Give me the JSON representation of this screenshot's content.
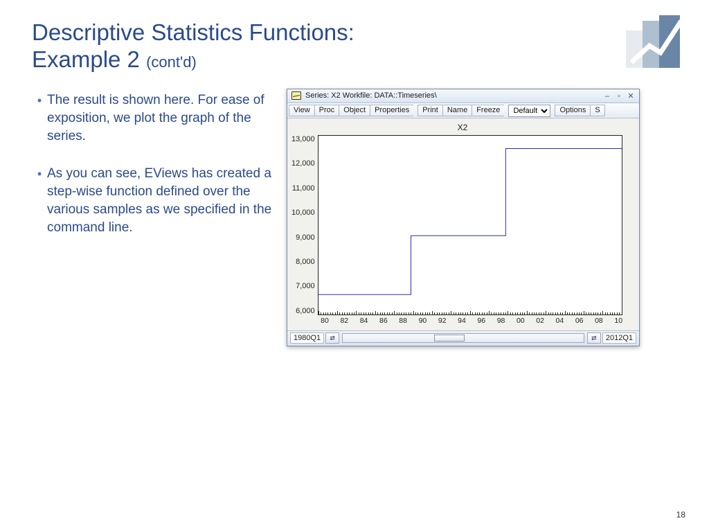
{
  "title": {
    "line1": "Descriptive Statistics Functions:",
    "line2_main": "Example 2",
    "line2_suffix": "(cont'd)"
  },
  "bullets": [
    "The result is shown here. For ease of exposition, we plot the graph of the series.",
    "As you can see, EViews has created a step-wise function defined over the various samples as we specified in the command line."
  ],
  "page_number": "18",
  "eviews": {
    "window_title": "Series: X2   Workfile: DATA::Timeseries\\",
    "toolbar_groups": [
      [
        "View",
        "Proc",
        "Object",
        "Properties"
      ],
      [
        "Print",
        "Name",
        "Freeze"
      ]
    ],
    "dropdown_value": "Default",
    "toolbar_right": [
      "Options",
      "S"
    ],
    "chart": {
      "type": "line",
      "title": "X2",
      "line_color": "#2a2ab5",
      "line_width": 1,
      "background_color": "#ffffff",
      "border_color": "#222222",
      "ylim": [
        6000,
        13000
      ],
      "ytick_step": 1000,
      "yticks": [
        "13,000",
        "12,000",
        "11,000",
        "10,000",
        "9,000",
        "8,000",
        "7,000",
        "6,000"
      ],
      "x_range": [
        1980,
        2012
      ],
      "xticks_major": [
        "80",
        "82",
        "84",
        "86",
        "88",
        "90",
        "92",
        "94",
        "96",
        "98",
        "00",
        "02",
        "04",
        "06",
        "08",
        "10"
      ],
      "series_points": [
        {
          "x": 1980.0,
          "y": 6800
        },
        {
          "x": 1989.75,
          "y": 6800
        },
        {
          "x": 1989.75,
          "y": 9100
        },
        {
          "x": 1999.75,
          "y": 9100
        },
        {
          "x": 1999.75,
          "y": 12500
        },
        {
          "x": 2012.0,
          "y": 12500
        }
      ]
    },
    "scrollbar": {
      "start": "1980Q1",
      "end": "2012Q1"
    }
  },
  "logo": {
    "bar1_color": "#e7ebef",
    "bar2_color": "#aebfcf",
    "bar3_color": "#6a86a6",
    "line_color": "#ffffff"
  }
}
